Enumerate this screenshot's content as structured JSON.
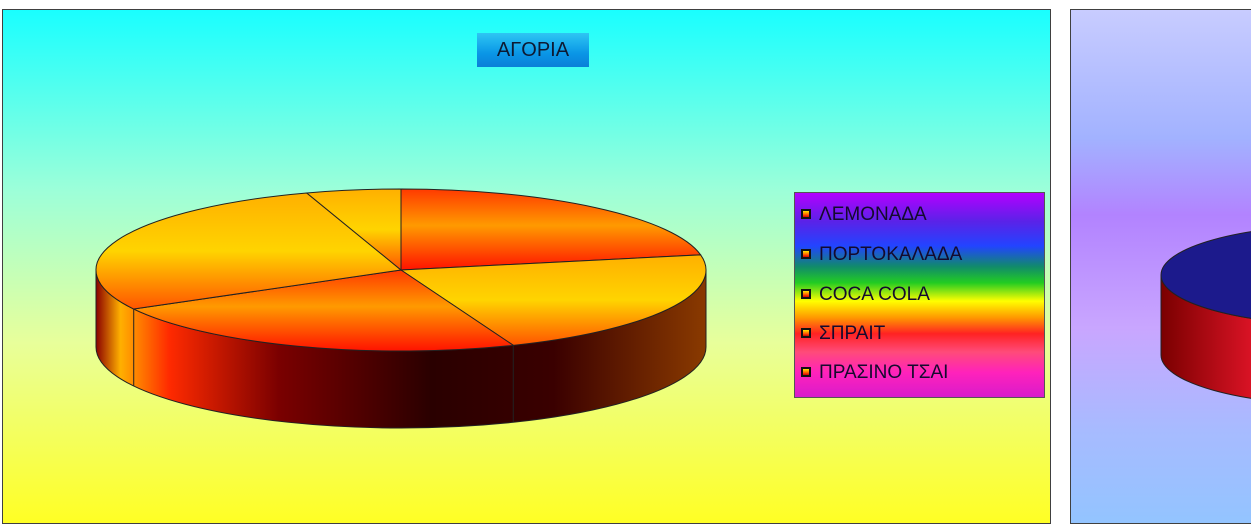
{
  "chart_data": [
    {
      "type": "pie",
      "title": "ΑΓΟΡΙΑ",
      "categories": [
        "ΛΕΜΟΝΑΔΑ",
        "ΠΟΡΤΟΚΑΛΑΔΑ",
        "COCA COLA",
        "ΣΠΡΑΙΤ",
        "ΠΡΑΣΙΝΟ ΤΣΑΙ"
      ],
      "values": [
        22,
        22,
        23,
        28,
        5
      ],
      "legend_position": "right",
      "colors": {
        "plot_background_top": "#19ffff",
        "plot_background_bottom": "#ffff24",
        "title_background": "#0a96e6",
        "slice_fill_light": "#ffd200",
        "slice_fill_dark": "#ff1800",
        "slice_side_dark": "#3a0000"
      }
    },
    {
      "type": "pie",
      "title": "",
      "categories": [],
      "values": [],
      "note_visible": "partially visible second chart cropped at right edge",
      "colors": {
        "plot_background_top": "#c8ccff",
        "plot_background_bottom": "#93c4ff",
        "slice_top": "#1c1a8c",
        "slice_side": "#ff1a33"
      }
    }
  ]
}
